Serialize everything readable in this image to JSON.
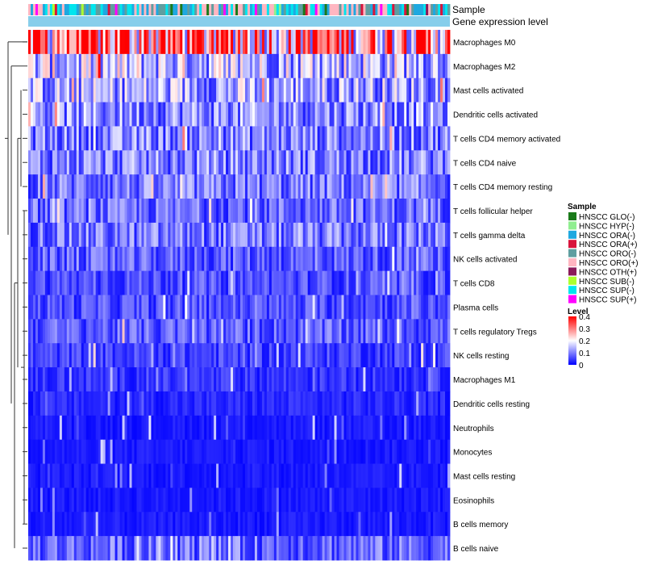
{
  "chart_data": {
    "type": "heatmap",
    "title": "",
    "annotation_tracks": [
      "Sample",
      "Gene expression level"
    ],
    "rows": [
      "Macrophages M0",
      "Macrophages M2",
      "Mast cells activated",
      "Dendritic cells activated",
      "T cells CD4 memory activated",
      "T cells CD4 naive",
      "T cells CD4 memory resting",
      "T cells follicular helper",
      "T cells gamma delta",
      "NK cells activated",
      "T cells CD8",
      "Plasma cells",
      "T cells regulatory  Tregs",
      "NK cells resting",
      "Macrophages M1",
      "Dendritic cells resting",
      "Neutrophils",
      "Monocytes",
      "Mast cells resting",
      "Eosinophils",
      "B cells memory",
      "B cells naive"
    ],
    "row_mean_levels": [
      0.3,
      0.15,
      0.13,
      0.11,
      0.1,
      0.1,
      0.09,
      0.08,
      0.09,
      0.07,
      0.06,
      0.06,
      0.07,
      0.05,
      0.04,
      0.03,
      0.02,
      0.02,
      0.02,
      0.02,
      0.02,
      0.08
    ],
    "num_samples": 175,
    "legend_sample": {
      "title": "Sample",
      "position": "right",
      "entries": [
        {
          "label": "HNSCC GLO(-)",
          "color": "#1a7a1a"
        },
        {
          "label": "HNSCC HYP(-)",
          "color": "#90ee90"
        },
        {
          "label": "HNSCC ORA(-)",
          "color": "#1fa8e0"
        },
        {
          "label": "HNSCC ORA(+)",
          "color": "#d8143c"
        },
        {
          "label": "HNSCC ORO(-)",
          "color": "#5f9ea0"
        },
        {
          "label": "HNSCC ORO(+)",
          "color": "#ffb6c1"
        },
        {
          "label": "HNSCC OTH(+)",
          "color": "#8b1a5a"
        },
        {
          "label": "HNSCC SUB(-)",
          "color": "#adff2f"
        },
        {
          "label": "HNSCC SUP(-)",
          "color": "#00e5ee"
        },
        {
          "label": "HNSCC SUP(+)",
          "color": "#ff00ff"
        }
      ]
    },
    "legend_level": {
      "title": "Level",
      "ticks": [
        "0.4",
        "0.3",
        "0.2",
        "0.1",
        "0"
      ],
      "tick_values": [
        0.4,
        0.3,
        0.2,
        0.1,
        0
      ],
      "range": [
        0,
        0.4
      ],
      "colors": {
        "low": "#0000ff",
        "mid": "#ffffff",
        "high": "#ff0000"
      }
    },
    "expression_bar_color": "#87ceeb"
  }
}
